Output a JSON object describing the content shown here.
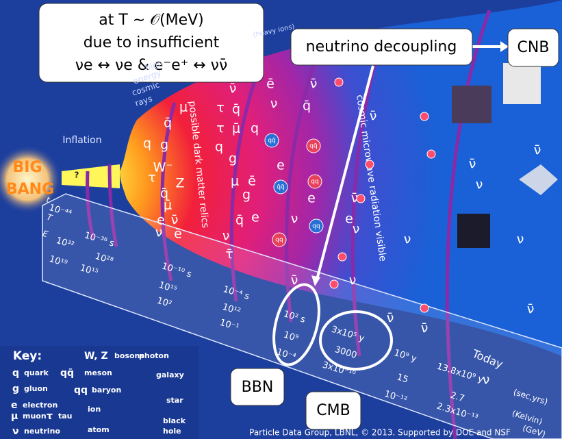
{
  "callout": {
    "lines": [
      "at T ∼ 𝒪(MeV)",
      "due to insufficient",
      "νe ↔ νe & e⁻e⁺ ↔ νν̄"
    ]
  },
  "neutrino_decoupling": "neutrino decoupling",
  "cnb": "CNB",
  "bbn": "BBN",
  "cmb": "CMB",
  "labels": {
    "big": "BIG",
    "bang": "BANG",
    "question": "?",
    "inflation": "Inflation",
    "cosmic_rays": [
      "high",
      "energy",
      "cosmic",
      "rays"
    ],
    "heavy_ions": "(heavy ions)",
    "dark_matter": "possible dark matter relics",
    "cmb_visible": "cosmic microwave radiation visible",
    "today": "Today"
  },
  "timeline": {
    "row_labels": [
      "t",
      "T",
      "E"
    ],
    "t": [
      "10⁻⁴⁴",
      "10⁻³⁶ s",
      "10⁻¹⁰ s",
      "10⁻⁴ s",
      "10² s",
      "3x10⁵ y",
      "10⁹ y",
      "13.8x10⁹ y"
    ],
    "T": [
      "10³²",
      "10²⁸",
      "10¹⁵",
      "10¹²",
      "10⁹",
      "3000",
      "15",
      "2.7"
    ],
    "E": [
      "10¹⁹",
      "10¹⁵",
      "10²",
      "10⁻¹",
      "10⁻⁴",
      "3x10⁻¹⁰",
      "10⁻¹²",
      "2.3x10⁻¹³"
    ],
    "units": [
      "(sec,yrs)",
      "(Kelvin)",
      "(GeV)"
    ]
  },
  "particles": [
    "μ",
    "q̄",
    "q",
    "g",
    "W⁻",
    "τ",
    "Z",
    "q̄",
    "μ̄",
    "e",
    "ν̄",
    "ν",
    "ē",
    "τ",
    "q̄",
    "ν̄",
    "q",
    "μ̄",
    "τ",
    "q",
    "g",
    "ν",
    "τ̄",
    "q̄",
    "e",
    "μ",
    "ē",
    "g",
    "ē",
    "ν",
    "ν̄",
    "q̄",
    "e",
    "ν",
    "e",
    "ν̄",
    "ν̄",
    "ν",
    "e",
    "ν",
    "ν̄",
    "ν",
    "ν̄",
    "ν",
    "ν",
    "ν̄",
    "ν̄",
    "ν̄",
    "ν",
    "ν̄"
  ],
  "mesons": [
    "qq̄",
    "qq̄",
    "q̄q̄",
    "qq",
    "qq",
    "qq"
  ],
  "key": {
    "title": "Key:",
    "items": [
      [
        "W, Z",
        "bosons"
      ],
      [
        "",
        "photon"
      ],
      [
        "q",
        "quark"
      ],
      [
        "qq̄",
        "meson"
      ],
      [
        "",
        "galaxy"
      ],
      [
        "g",
        "gluon"
      ],
      [
        "qq",
        "baryon"
      ],
      [
        "",
        "star"
      ],
      [
        "e",
        "electron"
      ],
      [
        "μ",
        "muon"
      ],
      [
        "τ",
        "tau"
      ],
      [
        "",
        "ion"
      ],
      [
        "",
        "black"
      ],
      [
        "",
        "hole"
      ],
      [
        "ν",
        "neutrino"
      ],
      [
        "",
        "atom"
      ]
    ]
  },
  "credit": "Particle Data Group, LBNL, © 2013.   Supported by DOE and NSF"
}
